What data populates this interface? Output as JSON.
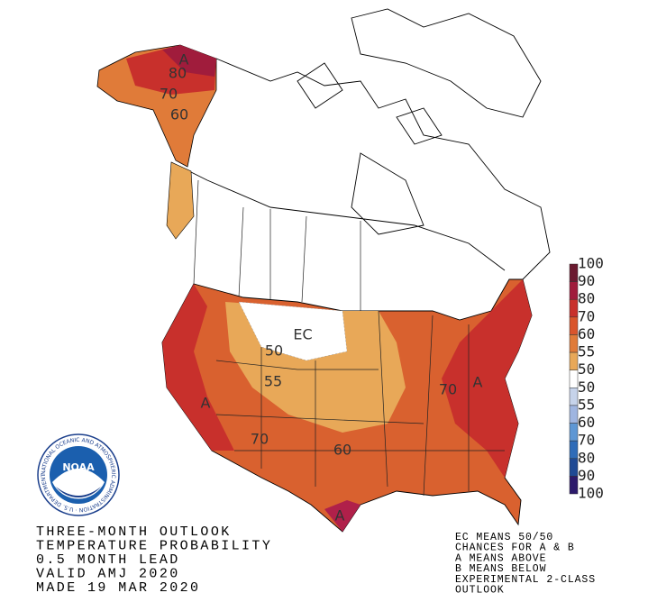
{
  "map": {
    "labels": [
      "A",
      "80",
      "70",
      "60",
      "EC",
      "50",
      "55",
      "A",
      "70",
      "60",
      "70",
      "A",
      "A"
    ]
  },
  "legend": {
    "labels": [
      100,
      90,
      80,
      70,
      60,
      55,
      50,
      50,
      55,
      60,
      70,
      80,
      90,
      100
    ],
    "colors": [
      "#6b1a30",
      "#a01c3c",
      "#c8302c",
      "#d9552c",
      "#e07b39",
      "#e8a858",
      "#ffffff",
      "#c6d3ea",
      "#9fb5e0",
      "#5e97d4",
      "#2f6cb8",
      "#1f4a94",
      "#2c1a6b"
    ]
  },
  "logo": {
    "name": "NOAA",
    "ring": "NATIONAL OCEANIC AND ATMOSPHERIC ADMINISTRATION · U.S. DEPARTMENT OF COMMERCE"
  },
  "title_lines": [
    "THREE-MONTH OUTLOOK",
    "TEMPERATURE PROBABILITY",
    "0.5 MONTH LEAD",
    "VALID AMJ 2020",
    "MADE 19 MAR 2020"
  ],
  "notes": [
    "EC MEANS 50/50",
    "CHANCES FOR A & B",
    "A MEANS ABOVE",
    "B MEANS BELOW",
    "EXPERIMENTAL 2-CLASS",
    "  OUTLOOK"
  ]
}
